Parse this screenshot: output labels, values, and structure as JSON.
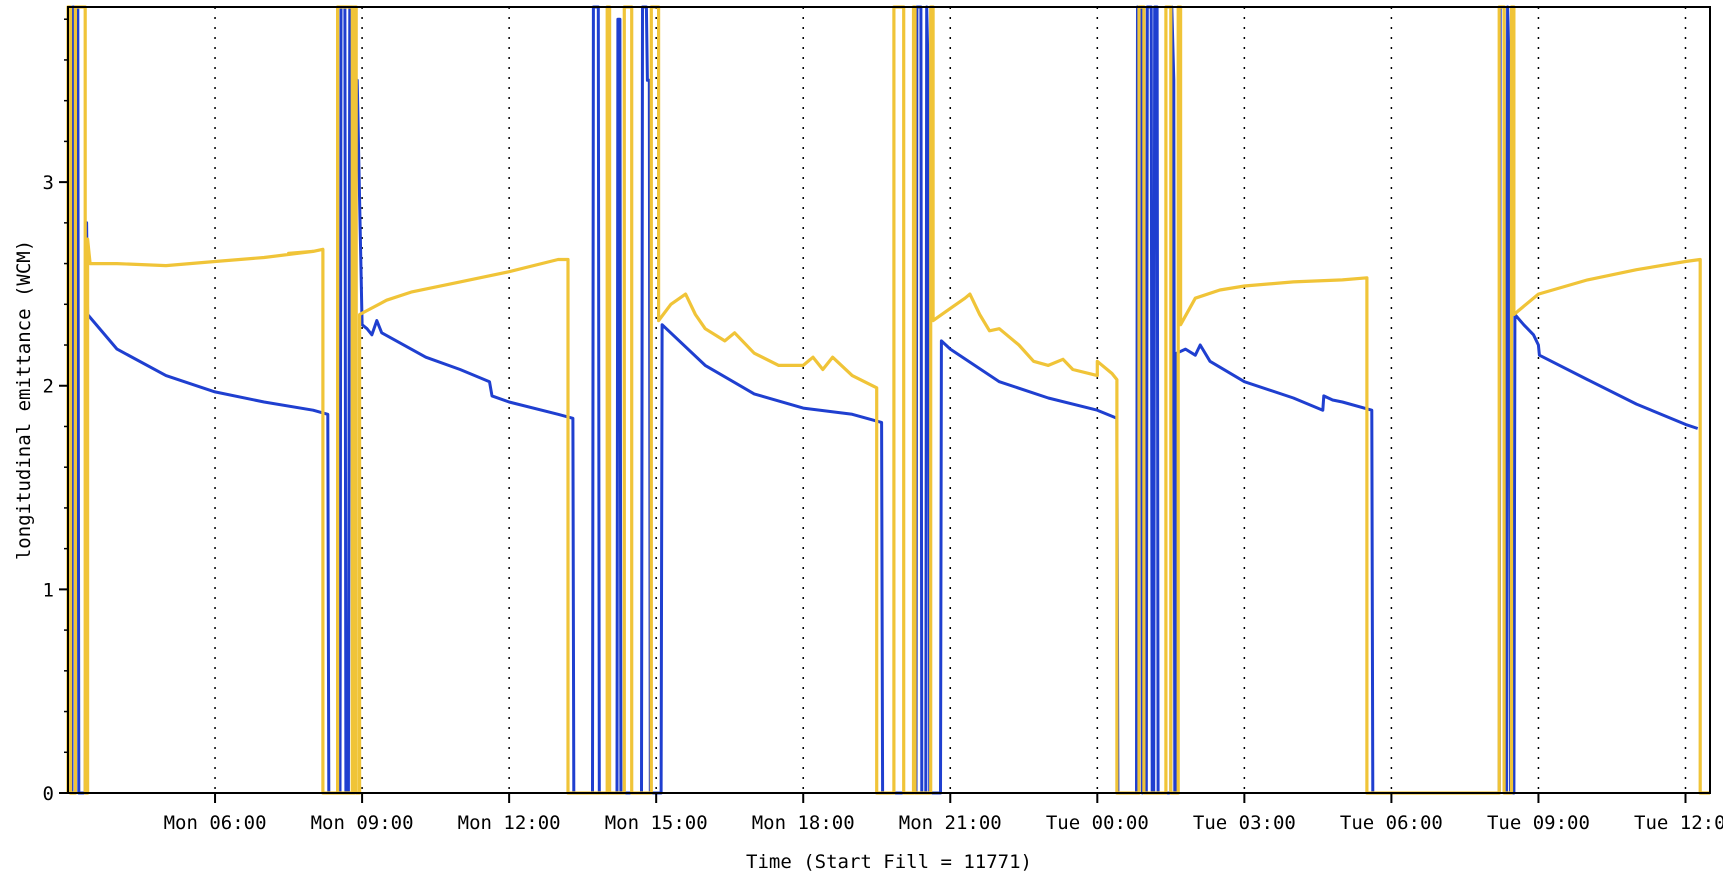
{
  "chart_data": {
    "type": "line",
    "xlabel": "Time (Start Fill = 11771)",
    "ylabel": "longitudinal emittance (WCM)",
    "ylim": [
      0,
      3.86
    ],
    "xlim_hours": [
      3.0,
      36.5
    ],
    "grid": "vertical dotted lines at major x ticks",
    "x_ticks": [
      {
        "t": 6,
        "label": "Mon 06:00"
      },
      {
        "t": 9,
        "label": "Mon 09:00"
      },
      {
        "t": 12,
        "label": "Mon 12:00"
      },
      {
        "t": 15,
        "label": "Mon 15:00"
      },
      {
        "t": 18,
        "label": "Mon 18:00"
      },
      {
        "t": 21,
        "label": "Mon 21:00"
      },
      {
        "t": 24,
        "label": "Tue 00:00"
      },
      {
        "t": 27,
        "label": "Tue 03:00"
      },
      {
        "t": 30,
        "label": "Tue 06:00"
      },
      {
        "t": 33,
        "label": "Tue 09:00"
      },
      {
        "t": 36,
        "label": "Tue 12:00"
      }
    ],
    "y_ticks": [
      {
        "v": 0,
        "label": "0"
      },
      {
        "v": 1,
        "label": "1"
      },
      {
        "v": 2,
        "label": "2"
      },
      {
        "v": 3,
        "label": "3"
      }
    ],
    "series": [
      {
        "color": "#1f3fd0",
        "points": [
          [
            3.0,
            0.0
          ],
          [
            3.02,
            3.86
          ],
          [
            3.06,
            3.86
          ],
          [
            3.08,
            0.0
          ],
          [
            3.1,
            3.86
          ],
          [
            3.2,
            3.86
          ],
          [
            3.22,
            0.0
          ],
          [
            3.35,
            0.0
          ],
          [
            3.38,
            2.8
          ],
          [
            3.4,
            2.35
          ],
          [
            4.0,
            2.18
          ],
          [
            5.0,
            2.05
          ],
          [
            6.0,
            1.97
          ],
          [
            7.0,
            1.92
          ],
          [
            8.0,
            1.88
          ],
          [
            8.3,
            1.86
          ],
          [
            8.32,
            0.0
          ],
          [
            8.55,
            0.0
          ],
          [
            8.57,
            3.86
          ],
          [
            8.65,
            3.86
          ],
          [
            8.67,
            0.0
          ],
          [
            8.72,
            0.0
          ],
          [
            8.75,
            3.86
          ],
          [
            8.82,
            3.86
          ],
          [
            8.84,
            3.5
          ],
          [
            8.9,
            3.5
          ],
          [
            9.0,
            2.3
          ],
          [
            9.1,
            2.28
          ],
          [
            9.2,
            2.25
          ],
          [
            9.3,
            2.32
          ],
          [
            9.4,
            2.26
          ],
          [
            10.0,
            2.18
          ],
          [
            10.3,
            2.14
          ],
          [
            11.0,
            2.08
          ],
          [
            11.6,
            2.02
          ],
          [
            11.65,
            1.95
          ],
          [
            12.0,
            1.92
          ],
          [
            13.0,
            1.86
          ],
          [
            13.3,
            1.84
          ],
          [
            13.32,
            0.0
          ],
          [
            13.7,
            0.0
          ],
          [
            13.72,
            3.86
          ],
          [
            13.82,
            3.86
          ],
          [
            13.84,
            0.0
          ],
          [
            14.2,
            0.0
          ],
          [
            14.22,
            3.8
          ],
          [
            14.26,
            3.8
          ],
          [
            14.28,
            0.0
          ],
          [
            14.7,
            0.0
          ],
          [
            14.72,
            3.86
          ],
          [
            14.8,
            3.86
          ],
          [
            14.82,
            3.5
          ],
          [
            14.86,
            3.5
          ],
          [
            14.88,
            0.0
          ],
          [
            15.1,
            0.0
          ],
          [
            15.12,
            2.3
          ],
          [
            16.0,
            2.1
          ],
          [
            17.0,
            1.96
          ],
          [
            18.0,
            1.89
          ],
          [
            19.0,
            1.86
          ],
          [
            19.6,
            1.82
          ],
          [
            19.62,
            0.0
          ],
          [
            20.3,
            0.0
          ],
          [
            20.32,
            3.86
          ],
          [
            20.4,
            3.86
          ],
          [
            20.42,
            0.0
          ],
          [
            20.5,
            0.0
          ],
          [
            20.52,
            3.86
          ],
          [
            20.56,
            3.4
          ],
          [
            20.58,
            0.0
          ],
          [
            20.8,
            0.0
          ],
          [
            20.82,
            2.22
          ],
          [
            21.0,
            2.18
          ],
          [
            22.0,
            2.02
          ],
          [
            23.0,
            1.94
          ],
          [
            24.0,
            1.88
          ],
          [
            24.4,
            1.84
          ],
          [
            24.42,
            0.0
          ],
          [
            24.8,
            0.0
          ],
          [
            24.82,
            3.86
          ],
          [
            24.9,
            3.86
          ],
          [
            24.92,
            0.0
          ],
          [
            25.0,
            0.0
          ],
          [
            25.02,
            3.86
          ],
          [
            25.1,
            3.86
          ],
          [
            25.12,
            0.0
          ],
          [
            25.15,
            0.0
          ],
          [
            25.17,
            3.86
          ],
          [
            25.22,
            3.86
          ],
          [
            25.24,
            0.0
          ],
          [
            25.5,
            0.0
          ],
          [
            25.52,
            3.86
          ],
          [
            25.56,
            3.5
          ],
          [
            25.58,
            0.0
          ],
          [
            25.6,
            0.0
          ],
          [
            25.62,
            2.16
          ],
          [
            25.8,
            2.18
          ],
          [
            26.0,
            2.15
          ],
          [
            26.1,
            2.2
          ],
          [
            26.3,
            2.12
          ],
          [
            27.0,
            2.02
          ],
          [
            28.0,
            1.94
          ],
          [
            28.6,
            1.88
          ],
          [
            28.62,
            1.95
          ],
          [
            28.8,
            1.93
          ],
          [
            29.0,
            1.92
          ],
          [
            29.6,
            1.88
          ],
          [
            29.62,
            0.0
          ],
          [
            32.2,
            0.0
          ],
          [
            32.22,
            3.86
          ],
          [
            32.3,
            3.86
          ],
          [
            32.32,
            0.0
          ],
          [
            32.35,
            0.0
          ],
          [
            32.37,
            3.86
          ],
          [
            32.41,
            3.5
          ],
          [
            32.43,
            0.0
          ],
          [
            32.5,
            0.0
          ],
          [
            32.52,
            2.35
          ],
          [
            32.7,
            2.3
          ],
          [
            32.9,
            2.25
          ],
          [
            33.0,
            2.2
          ],
          [
            33.02,
            2.15
          ],
          [
            34.0,
            2.03
          ],
          [
            35.0,
            1.91
          ],
          [
            36.0,
            1.81
          ],
          [
            36.25,
            1.79
          ]
        ]
      },
      {
        "color": "#f0c438",
        "points": [
          [
            3.0,
            0.0
          ],
          [
            3.0,
            3.86
          ],
          [
            3.05,
            3.86
          ],
          [
            3.05,
            0.0
          ],
          [
            3.15,
            0.0
          ],
          [
            3.15,
            3.86
          ],
          [
            3.35,
            3.86
          ],
          [
            3.35,
            0.0
          ],
          [
            3.4,
            0.0
          ],
          [
            3.4,
            2.72
          ],
          [
            3.45,
            2.6
          ],
          [
            4.0,
            2.6
          ],
          [
            5.0,
            2.59
          ],
          [
            6.0,
            2.61
          ],
          [
            7.0,
            2.63
          ],
          [
            8.0,
            2.66
          ],
          [
            7.5,
            2.65
          ],
          [
            8.0,
            2.66
          ],
          [
            8.2,
            2.67
          ],
          [
            8.2,
            0.0
          ],
          [
            8.8,
            0.0
          ],
          [
            8.8,
            3.86
          ],
          [
            8.5,
            3.86
          ],
          [
            8.5,
            3.86
          ],
          [
            8.5,
            0.0
          ],
          [
            8.85,
            0.0
          ],
          [
            8.85,
            3.86
          ],
          [
            8.88,
            3.86
          ],
          [
            8.88,
            0.0
          ],
          [
            8.95,
            0.0
          ],
          [
            8.95,
            2.35
          ],
          [
            9.5,
            2.42
          ],
          [
            10.0,
            2.46
          ],
          [
            11.0,
            2.51
          ],
          [
            12.0,
            2.56
          ],
          [
            13.0,
            2.62
          ],
          [
            13.2,
            2.62
          ],
          [
            13.2,
            0.0
          ],
          [
            14.0,
            0.0
          ],
          [
            14.0,
            3.86
          ],
          [
            14.05,
            3.86
          ],
          [
            14.05,
            0.0
          ],
          [
            14.35,
            0.0
          ],
          [
            14.35,
            3.86
          ],
          [
            14.5,
            3.86
          ],
          [
            14.5,
            0.0
          ],
          [
            14.9,
            0.0
          ],
          [
            14.9,
            3.86
          ],
          [
            15.05,
            3.86
          ],
          [
            15.05,
            2.32
          ],
          [
            15.3,
            2.4
          ],
          [
            15.6,
            2.45
          ],
          [
            15.8,
            2.35
          ],
          [
            16.0,
            2.28
          ],
          [
            16.4,
            2.22
          ],
          [
            16.6,
            2.26
          ],
          [
            17.0,
            2.16
          ],
          [
            17.5,
            2.1
          ],
          [
            18.0,
            2.1
          ],
          [
            18.2,
            2.14
          ],
          [
            18.4,
            2.08
          ],
          [
            18.6,
            2.14
          ],
          [
            19.0,
            2.05
          ],
          [
            19.5,
            1.99
          ],
          [
            19.5,
            0.0
          ],
          [
            19.85,
            0.0
          ],
          [
            19.85,
            3.86
          ],
          [
            20.05,
            3.86
          ],
          [
            20.05,
            0.0
          ],
          [
            20.25,
            0.0
          ],
          [
            20.25,
            3.86
          ],
          [
            20.28,
            3.86
          ],
          [
            20.28,
            0.0
          ],
          [
            20.6,
            0.0
          ],
          [
            20.6,
            3.86
          ],
          [
            20.65,
            3.86
          ],
          [
            20.65,
            2.32
          ],
          [
            21.0,
            2.38
          ],
          [
            21.3,
            2.43
          ],
          [
            21.4,
            2.45
          ],
          [
            21.6,
            2.35
          ],
          [
            21.8,
            2.27
          ],
          [
            22.0,
            2.28
          ],
          [
            22.4,
            2.2
          ],
          [
            22.7,
            2.12
          ],
          [
            23.0,
            2.1
          ],
          [
            23.3,
            2.13
          ],
          [
            23.5,
            2.08
          ],
          [
            24.0,
            2.05
          ],
          [
            24.0,
            2.12
          ],
          [
            24.3,
            2.06
          ],
          [
            24.4,
            2.03
          ],
          [
            24.4,
            0.0
          ],
          [
            24.85,
            0.0
          ],
          [
            24.85,
            3.86
          ],
          [
            24.95,
            3.86
          ],
          [
            24.95,
            0.0
          ],
          [
            25.4,
            0.0
          ],
          [
            25.4,
            3.86
          ],
          [
            25.5,
            3.86
          ],
          [
            25.5,
            0.0
          ],
          [
            25.65,
            0.0
          ],
          [
            25.65,
            3.86
          ],
          [
            25.7,
            3.86
          ],
          [
            25.7,
            2.3
          ],
          [
            26.0,
            2.43
          ],
          [
            26.5,
            2.47
          ],
          [
            27.0,
            2.49
          ],
          [
            28.0,
            2.51
          ],
          [
            29.0,
            2.52
          ],
          [
            29.5,
            2.53
          ],
          [
            29.5,
            0.0
          ],
          [
            32.2,
            0.0
          ],
          [
            32.2,
            3.86
          ],
          [
            32.3,
            3.86
          ],
          [
            32.3,
            0.0
          ],
          [
            32.45,
            0.0
          ],
          [
            32.45,
            3.86
          ],
          [
            32.5,
            3.86
          ],
          [
            32.5,
            2.35
          ],
          [
            33.0,
            2.45
          ],
          [
            34.0,
            2.52
          ],
          [
            35.0,
            2.57
          ],
          [
            36.0,
            2.61
          ],
          [
            36.3,
            2.62
          ],
          [
            36.3,
            0.0
          ],
          [
            36.5,
            0.0
          ]
        ]
      }
    ]
  }
}
